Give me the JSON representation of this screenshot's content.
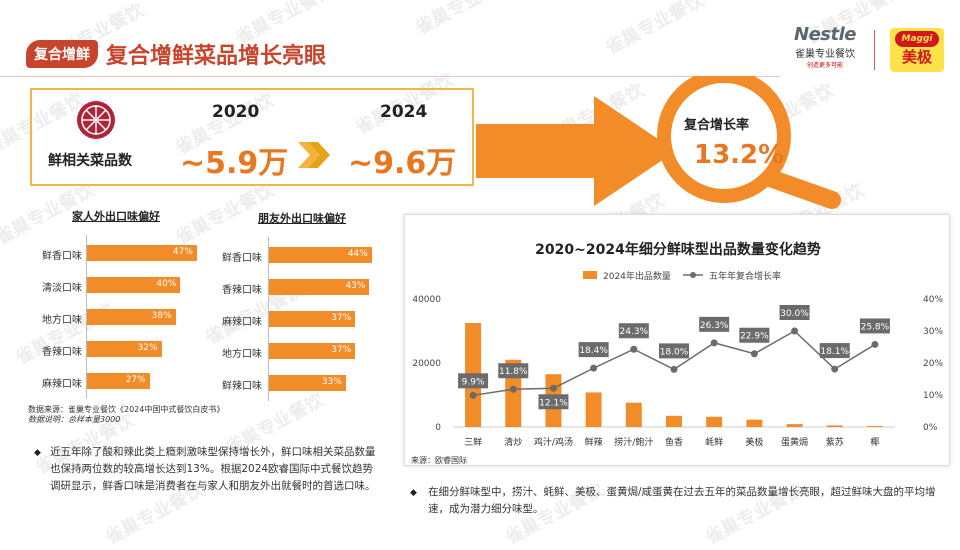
{
  "header": {
    "badge": "复合增鲜",
    "title": "复合增鲜菜品增长亮眼",
    "nestle_brand": "Nestle",
    "nestle_sub": "雀巢专业餐饮",
    "nestle_tagline": "创造更多可能",
    "maggi_brand": "Maggi",
    "maggi_cn": "美极"
  },
  "stats": {
    "label": "鲜相关菜品数",
    "year_start": "2020",
    "year_end": "2024",
    "value_start": "~5.9万",
    "value_end": "~9.6万",
    "growth_label": "复合增长率",
    "growth_value": "13.2%"
  },
  "watermark": "雀巢专业餐饮",
  "colors": {
    "accent": "#e87722",
    "bar": "#f28c28",
    "title_red": "#c6452c",
    "line_gray": "#6b6b6b"
  },
  "left_note": {
    "source": "数据来源：雀巢专业餐饮《2024中国中式餐饮白皮书》",
    "sample": "数据说明：总样本量3000",
    "bullet": "近五年除了酸和辣此类上瘾刺激味型保持增长外，鲜口味相关菜品数量也保持两位数的较高增长达到13%。根据2024欧睿国际中式餐饮趋势调研显示，鲜香口味是消费者在与家人和朋友外出就餐时的首选口味。"
  },
  "right_note": {
    "bullet": "在细分鲜味型中，捞汁、蚝鲜、美极、蛋黄焗/咸蛋黄在过去五年的菜品数量增长亮眼，超过鲜味大盘的平均增速，成为潜力细分味型。"
  },
  "chart_data": [
    {
      "type": "bar",
      "orientation": "horizontal",
      "title": "家人外出口味偏好",
      "categories": [
        "鲜香口味",
        "清淡口味",
        "地方口味",
        "香辣口味",
        "麻辣口味"
      ],
      "values": [
        47,
        40,
        38,
        32,
        27
      ],
      "value_labels": [
        "47%",
        "40%",
        "38%",
        "32%",
        "27%"
      ],
      "unit": "%"
    },
    {
      "type": "bar",
      "orientation": "horizontal",
      "title": "朋友外出口味偏好",
      "categories": [
        "鲜香口味",
        "香辣口味",
        "麻辣口味",
        "地方口味",
        "鲜辣口味"
      ],
      "values": [
        44,
        43,
        37,
        37,
        33
      ],
      "value_labels": [
        "44%",
        "43%",
        "37%",
        "37%",
        "33%"
      ],
      "unit": "%"
    },
    {
      "type": "bar+line",
      "title": "2020~2024年细分鲜味型出品数量变化趋势",
      "categories": [
        "三鲜",
        "清炒",
        "鸡汁/鸡汤",
        "鲜辣",
        "捞汁/鲍汁",
        "鱼香",
        "蚝鲜",
        "美极",
        "蛋黄焗",
        "紫苏",
        "椰"
      ],
      "series": [
        {
          "name": "2024年出品数量",
          "type": "bar",
          "axis": "left",
          "values": [
            32500,
            21000,
            16500,
            10800,
            7600,
            3500,
            3200,
            2300,
            900,
            500,
            300
          ]
        },
        {
          "name": "五年年复合增长率",
          "type": "line",
          "axis": "right",
          "values": [
            9.9,
            11.8,
            12.1,
            18.4,
            24.3,
            18.0,
            26.3,
            22.9,
            30.0,
            18.1,
            25.8
          ],
          "labels": [
            "9.9%",
            "11.8%",
            "12.1%",
            "18.4%",
            "24.3%",
            "18.0%",
            "26.3%",
            "22.9%",
            "30.0%",
            "18.1%",
            "25.8%"
          ]
        }
      ],
      "ylim_left": [
        0,
        40000
      ],
      "yticks_left": [
        "0",
        "20000",
        "40000"
      ],
      "ylim_right": [
        0,
        40
      ],
      "yticks_right": [
        "0%",
        "10%",
        "20%",
        "30%",
        "40%"
      ],
      "legend": "top",
      "source": "来源：欧睿国际"
    }
  ]
}
